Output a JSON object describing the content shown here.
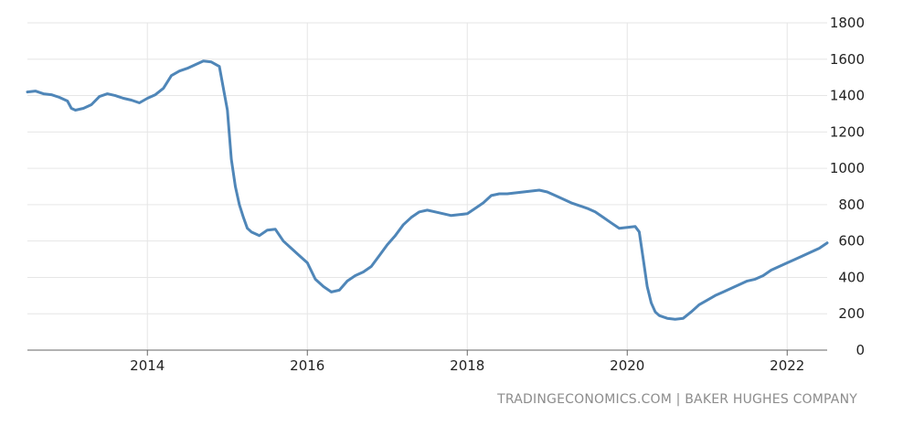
{
  "source": {
    "site": "TRADINGECONOMICS.COM",
    "separator": "|",
    "provider": "BAKER HUGHES COMPANY"
  },
  "colors": {
    "line": "#4f86b8",
    "grid": "#e6e6e6",
    "axis": "#666666",
    "text": "#222222",
    "source": "#8c8c8c"
  },
  "chart_data": {
    "type": "line",
    "title": "",
    "xlabel": "",
    "ylabel": "",
    "xlim": [
      2012.5,
      2022.5
    ],
    "ylim": [
      0,
      1800
    ],
    "x_ticks": [
      "2014",
      "2016",
      "2018",
      "2020",
      "2022"
    ],
    "y_ticks": [
      0,
      200,
      400,
      600,
      800,
      1000,
      1200,
      1400,
      1600,
      1800
    ],
    "grid": true,
    "legend": "none",
    "series": [
      {
        "name": "",
        "x": [
          2012.5,
          2012.6,
          2012.7,
          2012.8,
          2012.9,
          2013.0,
          2013.05,
          2013.1,
          2013.2,
          2013.3,
          2013.4,
          2013.5,
          2013.6,
          2013.7,
          2013.8,
          2013.9,
          2014.0,
          2014.1,
          2014.2,
          2014.3,
          2014.4,
          2014.5,
          2014.6,
          2014.7,
          2014.8,
          2014.9,
          2015.0,
          2015.05,
          2015.1,
          2015.15,
          2015.2,
          2015.25,
          2015.3,
          2015.35,
          2015.4,
          2015.5,
          2015.6,
          2015.7,
          2015.8,
          2015.9,
          2016.0,
          2016.1,
          2016.2,
          2016.3,
          2016.4,
          2016.5,
          2016.6,
          2016.7,
          2016.8,
          2016.9,
          2017.0,
          2017.1,
          2017.2,
          2017.3,
          2017.4,
          2017.5,
          2017.6,
          2017.7,
          2017.8,
          2017.9,
          2018.0,
          2018.1,
          2018.2,
          2018.3,
          2018.4,
          2018.5,
          2018.6,
          2018.7,
          2018.8,
          2018.9,
          2019.0,
          2019.1,
          2019.2,
          2019.3,
          2019.4,
          2019.5,
          2019.6,
          2019.7,
          2019.8,
          2019.9,
          2020.0,
          2020.1,
          2020.15,
          2020.2,
          2020.25,
          2020.3,
          2020.35,
          2020.4,
          2020.5,
          2020.6,
          2020.7,
          2020.8,
          2020.9,
          2021.0,
          2021.1,
          2021.2,
          2021.3,
          2021.4,
          2021.5,
          2021.6,
          2021.7,
          2021.8,
          2021.9,
          2022.0,
          2022.1,
          2022.2,
          2022.3,
          2022.4,
          2022.5
        ],
        "values": [
          1420,
          1425,
          1410,
          1405,
          1390,
          1370,
          1330,
          1320,
          1330,
          1350,
          1395,
          1410,
          1400,
          1385,
          1375,
          1360,
          1385,
          1405,
          1440,
          1510,
          1535,
          1550,
          1570,
          1590,
          1585,
          1560,
          1320,
          1050,
          900,
          800,
          730,
          670,
          650,
          640,
          630,
          660,
          665,
          600,
          560,
          520,
          480,
          390,
          350,
          320,
          330,
          380,
          410,
          430,
          460,
          520,
          580,
          630,
          690,
          730,
          760,
          770,
          760,
          750,
          740,
          745,
          750,
          780,
          810,
          850,
          860,
          860,
          865,
          870,
          875,
          880,
          870,
          850,
          830,
          810,
          795,
          780,
          760,
          730,
          700,
          670,
          675,
          680,
          650,
          500,
          350,
          260,
          210,
          190,
          175,
          170,
          175,
          210,
          250,
          275,
          300,
          320,
          340,
          360,
          380,
          390,
          410,
          440,
          460,
          480,
          500,
          520,
          540,
          560,
          590
        ]
      }
    ]
  }
}
